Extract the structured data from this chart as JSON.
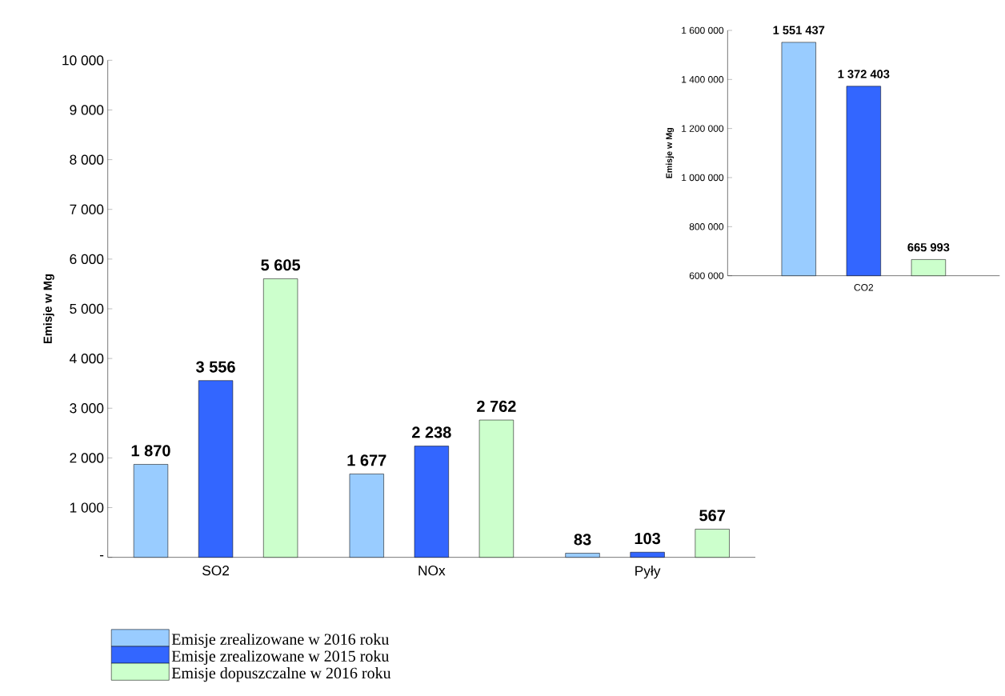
{
  "chart_data": [
    {
      "type": "bar",
      "ylabel": "Emisje w Mg",
      "categories": [
        "SO2",
        "NOx",
        "Pyły"
      ],
      "series": [
        {
          "name": "Emisje zrealizowane w 2016 roku",
          "color": "#99ccff",
          "values": [
            1870,
            1677,
            83
          ],
          "value_labels": [
            "1 870",
            "1 677",
            "83"
          ]
        },
        {
          "name": "Emisje zrealizowane w 2015 roku",
          "color": "#3366ff",
          "values": [
            3556,
            2238,
            103
          ],
          "value_labels": [
            "3 556",
            "2 238",
            "103"
          ]
        },
        {
          "name": "Emisje dopuszczalne w 2016 roku",
          "color": "#ccffcc",
          "values": [
            5605,
            2762,
            567
          ],
          "value_labels": [
            "5 605",
            "2 762",
            "567"
          ]
        }
      ],
      "ylim": [
        0,
        10000
      ],
      "yticks": [
        {
          "value": 0,
          "label": "-"
        },
        {
          "value": 1000,
          "label": "1 000"
        },
        {
          "value": 2000,
          "label": "2 000"
        },
        {
          "value": 3000,
          "label": "3 000"
        },
        {
          "value": 4000,
          "label": "4 000"
        },
        {
          "value": 5000,
          "label": "5 000"
        },
        {
          "value": 6000,
          "label": "6 000"
        },
        {
          "value": 7000,
          "label": "7 000"
        },
        {
          "value": 8000,
          "label": "8 000"
        },
        {
          "value": 9000,
          "label": "9 000"
        },
        {
          "value": 10000,
          "label": "10 000"
        }
      ],
      "legend": "bottom left"
    },
    {
      "type": "bar",
      "ylabel": "Emisje w Mg",
      "categories": [
        "CO2"
      ],
      "series": [
        {
          "color": "#99ccff",
          "values": [
            1551437
          ],
          "value_labels": [
            "1 551 437"
          ]
        },
        {
          "color": "#3366ff",
          "values": [
            1372403
          ],
          "value_labels": [
            "1 372 403"
          ]
        },
        {
          "color": "#ccffcc",
          "values": [
            665993
          ],
          "value_labels": [
            "665 993"
          ]
        }
      ],
      "ylim": [
        600000,
        1600000
      ],
      "yticks": [
        {
          "value": 600000,
          "label": "600 000"
        },
        {
          "value": 800000,
          "label": "800 000"
        },
        {
          "value": 1000000,
          "label": "1 000 000"
        },
        {
          "value": 1200000,
          "label": "1 200 000"
        },
        {
          "value": 1400000,
          "label": "1 400 000"
        },
        {
          "value": 1600000,
          "label": "1 600 000"
        }
      ]
    }
  ]
}
